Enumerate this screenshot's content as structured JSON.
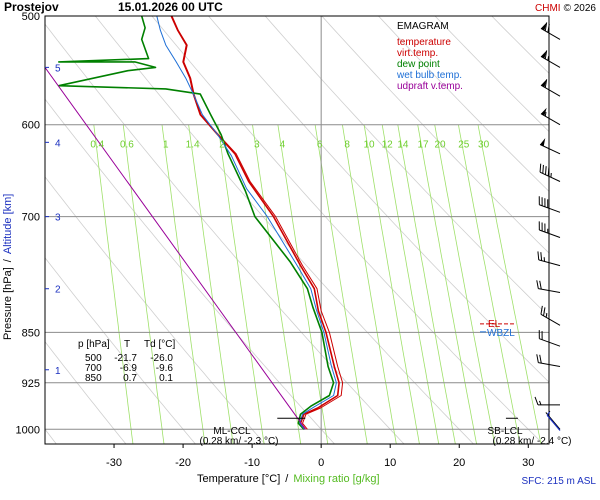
{
  "header": {
    "station": "Prostejov",
    "datetime": "15.01.2026 00 UTC",
    "credit_chmi": "CHMI",
    "credit_year": "© 2026",
    "chmi_color": "#cc0000"
  },
  "chart_data": {
    "type": "line",
    "title": "EMAGRAM",
    "xlabel_temp": "Temperature [°C]",
    "xlabel_sep": "/",
    "xlabel_mix": "Mixing ratio [g/kg]",
    "ylabel_pres": "Pressure [hPa]",
    "ylabel_sep": "/",
    "ylabel_alt": "Altitude [km]",
    "xlim": [
      -40,
      33
    ],
    "ylim": [
      1025,
      500
    ],
    "x_ticks": [
      -30,
      -20,
      -10,
      0,
      10,
      20,
      30
    ],
    "y_ticks": [
      500,
      600,
      700,
      850,
      925,
      1000
    ],
    "alt_ticks": [
      {
        "km": "1",
        "p": 905
      },
      {
        "km": "2",
        "p": 790
      },
      {
        "km": "3",
        "p": 700
      },
      {
        "km": "4",
        "p": 618
      },
      {
        "km": "5",
        "p": 545
      }
    ],
    "mixing_ratio_labels": [
      "0.4",
      "0.6",
      "1",
      "1.4",
      "2",
      "3",
      "4",
      "6",
      "8",
      "10",
      "12",
      "14",
      "17",
      "20",
      "25",
      "30"
    ],
    "legend": [
      {
        "name": "temperature",
        "color": "#cc0000"
      },
      {
        "name": "virt.temp.",
        "color": "#cc0000"
      },
      {
        "name": "dew point",
        "color": "#008000"
      },
      {
        "name": "wet bulb temp.",
        "color": "#1e6fd6"
      },
      {
        "name": "udpraft v.temp.",
        "color": "#990099"
      }
    ],
    "series": [
      {
        "name": "temperature",
        "color": "#cc0000",
        "points": [
          [
            -2.3,
            1000
          ],
          [
            -3.0,
            990
          ],
          [
            -2.5,
            975
          ],
          [
            -0.5,
            965
          ],
          [
            2.4,
            945
          ],
          [
            2.6,
            925
          ],
          [
            1.9,
            900
          ],
          [
            0.7,
            850
          ],
          [
            -0.4,
            820
          ],
          [
            -1.0,
            790
          ],
          [
            -3.0,
            760
          ],
          [
            -6.9,
            700
          ],
          [
            -10.5,
            660
          ],
          [
            -12.5,
            630
          ],
          [
            -15.0,
            610
          ],
          [
            -17.5,
            590
          ],
          [
            -18.5,
            570
          ],
          [
            -19.0,
            555
          ],
          [
            -20.0,
            540
          ],
          [
            -19.5,
            525
          ],
          [
            -20.8,
            512
          ],
          [
            -21.7,
            500
          ]
        ]
      },
      {
        "name": "virt.temp.",
        "color": "#cc0000",
        "points": [
          [
            -2.0,
            1000
          ],
          [
            -2.7,
            990
          ],
          [
            -2.2,
            975
          ],
          [
            -0.1,
            965
          ],
          [
            2.9,
            945
          ],
          [
            3.1,
            925
          ],
          [
            2.4,
            900
          ],
          [
            1.2,
            850
          ],
          [
            0.0,
            820
          ],
          [
            -0.6,
            790
          ],
          [
            -2.7,
            760
          ],
          [
            -6.6,
            700
          ],
          [
            -10.3,
            660
          ],
          [
            -12.3,
            630
          ],
          [
            -14.9,
            610
          ],
          [
            -17.4,
            590
          ],
          [
            -18.4,
            570
          ],
          [
            -18.9,
            555
          ],
          [
            -19.9,
            540
          ],
          [
            -19.4,
            525
          ],
          [
            -20.7,
            512
          ],
          [
            -21.6,
            500
          ]
        ]
      },
      {
        "name": "dew point",
        "color": "#008000",
        "points": [
          [
            -2.5,
            1000
          ],
          [
            -3.3,
            990
          ],
          [
            -3.0,
            975
          ],
          [
            -1.5,
            962
          ],
          [
            1.2,
            945
          ],
          [
            1.8,
            925
          ],
          [
            1.0,
            900
          ],
          [
            0.1,
            850
          ],
          [
            -1.2,
            815
          ],
          [
            -2.0,
            790
          ],
          [
            -4.5,
            755
          ],
          [
            -9.6,
            700
          ],
          [
            -11.0,
            670
          ],
          [
            -13.5,
            630
          ],
          [
            -14.5,
            610
          ],
          [
            -16.0,
            590
          ],
          [
            -17.5,
            570
          ],
          [
            -22.5,
            565
          ],
          [
            -38.0,
            562
          ],
          [
            -28.0,
            548
          ],
          [
            -24.0,
            545
          ],
          [
            -27.0,
            540
          ],
          [
            -38.0,
            540
          ],
          [
            -25.0,
            537
          ],
          [
            -26.0,
            520
          ],
          [
            -25.5,
            510
          ],
          [
            -26.0,
            500
          ]
        ]
      },
      {
        "name": "wet bulb temp.",
        "color": "#1e6fd6",
        "points": [
          [
            -2.4,
            1000
          ],
          [
            -3.1,
            990
          ],
          [
            -2.7,
            975
          ],
          [
            -1.0,
            963
          ],
          [
            1.8,
            945
          ],
          [
            2.2,
            925
          ],
          [
            1.5,
            900
          ],
          [
            0.4,
            850
          ],
          [
            -0.7,
            818
          ],
          [
            -1.5,
            790
          ],
          [
            -3.6,
            758
          ],
          [
            -7.8,
            700
          ],
          [
            -10.8,
            668
          ],
          [
            -13.0,
            632
          ],
          [
            -15.0,
            610
          ],
          [
            -17.2,
            590
          ],
          [
            -18.5,
            570
          ],
          [
            -19.6,
            555
          ],
          [
            -21.0,
            540
          ],
          [
            -22.5,
            525
          ],
          [
            -23.3,
            512
          ],
          [
            -23.8,
            500
          ]
        ]
      },
      {
        "name": "udpraft v.temp.",
        "color": "#990099",
        "points": [
          [
            -2.3,
            1000
          ],
          [
            -3.2,
            985
          ],
          [
            -40,
            545
          ]
        ]
      }
    ],
    "lcl": [
      {
        "label": "ML-CCL",
        "detail": "(0.28 km/ -2.3 °C)",
        "t": -2.3,
        "p": 985
      },
      {
        "label": "SB-LCL",
        "detail": "(0.28 km/ -2.4 °C)",
        "t": 28.5,
        "p": 985
      }
    ],
    "levels": {
      "wbzl_label": "WBZL",
      "level_tag": "EL",
      "p": 845
    },
    "table": {
      "header": [
        "p [hPa]",
        "T",
        "Td [°C]"
      ],
      "rows": [
        [
          "500",
          "-21.7",
          "-26.0"
        ],
        [
          "700",
          "-6.9",
          "-9.6"
        ],
        [
          "850",
          "0.7",
          "0.1"
        ]
      ]
    },
    "sfc_text": "SFC: 215 m ASL",
    "winds": [
      {
        "p": 520,
        "dir": 300,
        "kt": 70
      },
      {
        "p": 545,
        "dir": 300,
        "kt": 65
      },
      {
        "p": 572,
        "dir": 300,
        "kt": 60
      },
      {
        "p": 600,
        "dir": 300,
        "kt": 55
      },
      {
        "p": 630,
        "dir": 295,
        "kt": 50
      },
      {
        "p": 660,
        "dir": 295,
        "kt": 45
      },
      {
        "p": 695,
        "dir": 290,
        "kt": 40
      },
      {
        "p": 725,
        "dir": 290,
        "kt": 35
      },
      {
        "p": 760,
        "dir": 285,
        "kt": 25
      },
      {
        "p": 795,
        "dir": 280,
        "kt": 20
      },
      {
        "p": 840,
        "dir": 300,
        "kt": 25
      },
      {
        "p": 870,
        "dir": 290,
        "kt": 20
      },
      {
        "p": 900,
        "dir": 280,
        "kt": 20
      },
      {
        "p": 960,
        "dir": 270,
        "kt": 15
      },
      {
        "p": 1000,
        "dir": 320,
        "kt": 5
      }
    ]
  }
}
